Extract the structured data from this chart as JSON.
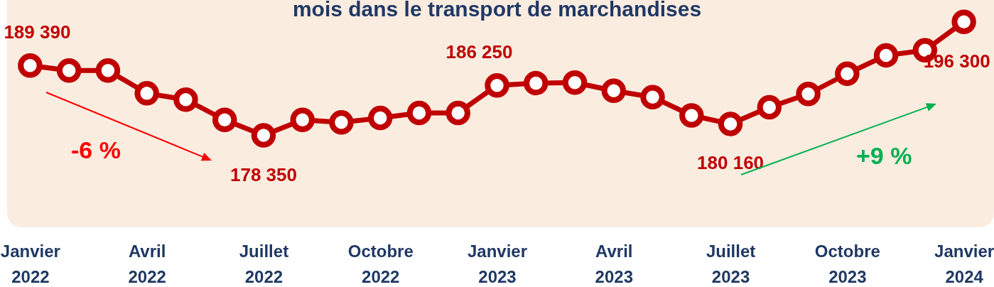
{
  "chart_data": {
    "type": "line",
    "title": "mois dans le transport de marchandises",
    "categories": [
      "Janvier 2022",
      null,
      null,
      "Avril 2022",
      null,
      null,
      "Juillet 2022",
      null,
      null,
      "Octobre 2022",
      null,
      null,
      "Janvier 2023",
      null,
      null,
      "Avril 2023",
      null,
      null,
      "Juillet 2023",
      null,
      null,
      "Octobre 2023",
      null,
      null,
      "Janvier 2024"
    ],
    "series": [
      {
        "color": "#c00000",
        "values": [
          189390,
          188600,
          188600,
          185000,
          184000,
          180800,
          178350,
          180800,
          180400,
          181100,
          181900,
          181900,
          186250,
          186600,
          186700,
          185400,
          184400,
          181500,
          180160,
          182800,
          184900,
          188100,
          191000,
          191800,
          196300
        ],
        "value_labels": [
          "189 390",
          null,
          null,
          null,
          null,
          null,
          "178 350",
          null,
          null,
          null,
          null,
          null,
          "186 250",
          null,
          null,
          null,
          null,
          null,
          "180 160",
          null,
          null,
          null,
          null,
          null,
          "196 300"
        ]
      }
    ],
    "annotations": [
      "-6 %",
      "+9 %"
    ],
    "marker": "circle",
    "line_style": "solid",
    "grid": false,
    "legend": false
  }
}
